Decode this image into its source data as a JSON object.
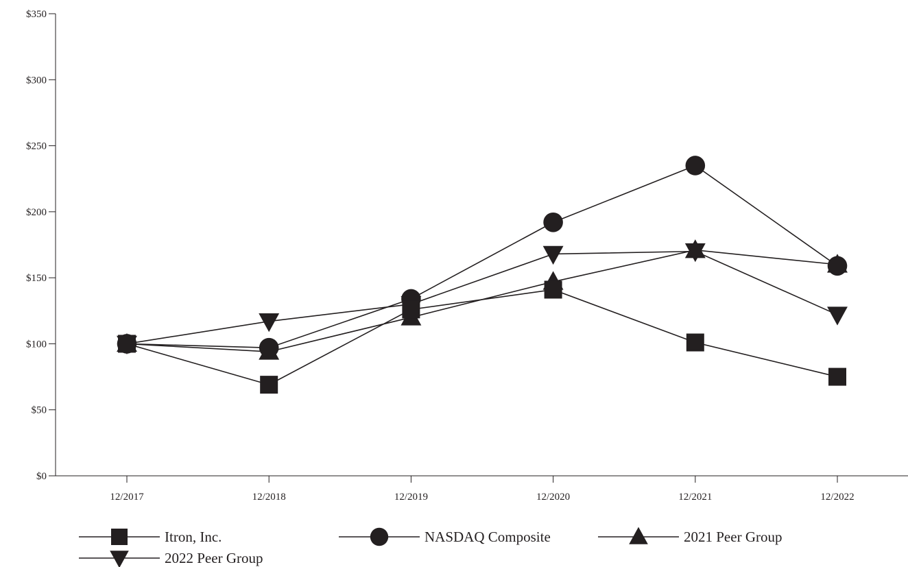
{
  "chart_data": {
    "type": "line",
    "categories": [
      "12/2017",
      "12/2018",
      "12/2019",
      "12/2020",
      "12/2021",
      "12/2022"
    ],
    "ylim": [
      0,
      350
    ],
    "yticks": [
      "$0",
      "$50",
      "$100",
      "$150",
      "$200",
      "$250",
      "$300",
      "$350"
    ],
    "ytick_values": [
      0,
      50,
      100,
      150,
      200,
      250,
      300,
      350
    ],
    "grid": false,
    "legend_position": "bottom",
    "series": [
      {
        "name": "Itron, Inc.",
        "marker": "square",
        "values": [
          100,
          69,
          126,
          141,
          101,
          75
        ]
      },
      {
        "name": "NASDAQ Composite",
        "marker": "circle",
        "values": [
          100,
          97,
          134,
          192,
          235,
          159
        ]
      },
      {
        "name": "2021 Peer Group",
        "marker": "triangle-up",
        "values": [
          100,
          94,
          120,
          147,
          171,
          160
        ]
      },
      {
        "name": "2022 Peer Group",
        "marker": "triangle-down",
        "values": [
          100,
          117,
          130,
          168,
          170,
          122
        ]
      }
    ],
    "colors": {
      "ink": "#231f20"
    }
  }
}
